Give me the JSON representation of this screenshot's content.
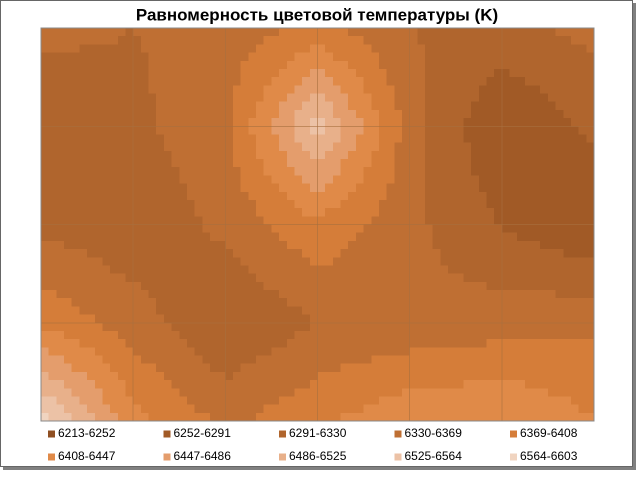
{
  "chart_data": {
    "type": "contour",
    "title": "Равномерность цветовой температуры (K)",
    "levels": [
      6213,
      6252,
      6291,
      6330,
      6369,
      6408,
      6447,
      6486,
      6525,
      6564,
      6603
    ],
    "series": [
      {
        "name": "6213-6252",
        "color": "#8f4f22"
      },
      {
        "name": "6252-6291",
        "color": "#a15a26"
      },
      {
        "name": "6291-6330",
        "color": "#b0652d"
      },
      {
        "name": "6330-6369",
        "color": "#bf6f33"
      },
      {
        "name": "6369-6408",
        "color": "#d57d39"
      },
      {
        "name": "6408-6447",
        "color": "#e08a48"
      },
      {
        "name": "6447-6486",
        "color": "#e49d6c"
      },
      {
        "name": "6486-6525",
        "color": "#e8b08a"
      },
      {
        "name": "6525-6564",
        "color": "#ecc2a6"
      },
      {
        "name": "6564-6603",
        "color": "#f0d4c0"
      }
    ],
    "z": [
      [
        6340,
        6330,
        6345,
        6380,
        6330,
        6320,
        6340
      ],
      [
        6300,
        6320,
        6360,
        6540,
        6350,
        6250,
        6300
      ],
      [
        6320,
        6300,
        6340,
        6400,
        6340,
        6290,
        6250
      ],
      [
        6400,
        6350,
        6290,
        6330,
        6340,
        6350,
        6360
      ],
      [
        6580,
        6420,
        6360,
        6400,
        6440,
        6450,
        6410
      ]
    ]
  }
}
